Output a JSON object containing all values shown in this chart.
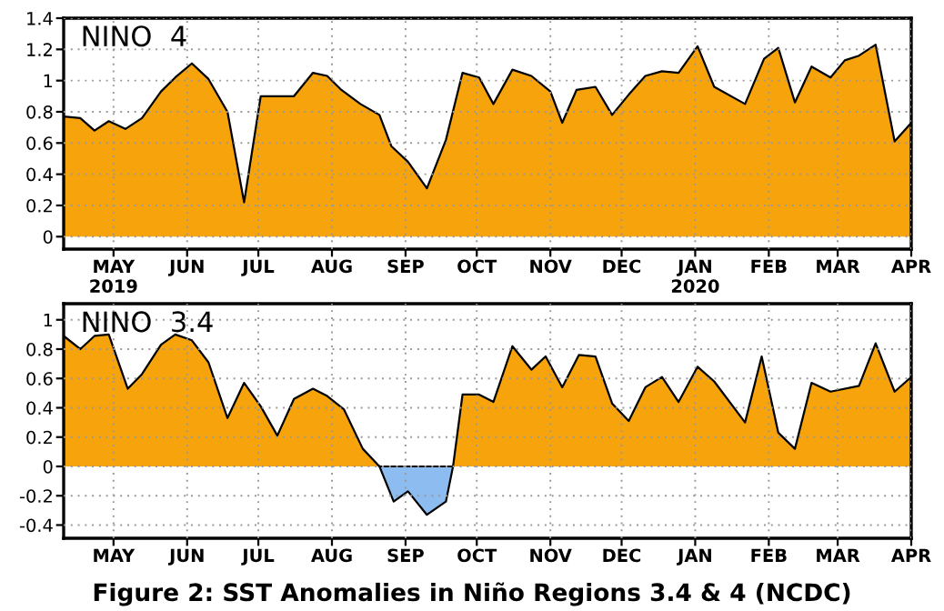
{
  "chart_data": [
    {
      "type": "area",
      "title": "NINO  4",
      "xlim": [
        "2019-04-10",
        "2020-04-01"
      ],
      "ylim": [
        -0.08,
        1.4
      ],
      "yticks": [
        0,
        0.2,
        0.4,
        0.6,
        0.8,
        1,
        1.2,
        1.4
      ],
      "xticks": [
        {
          "value": "2019-05-01",
          "label": "MAY\n2019"
        },
        {
          "value": "2019-06-01",
          "label": "JUN"
        },
        {
          "value": "2019-07-01",
          "label": "JUL"
        },
        {
          "value": "2019-08-01",
          "label": "AUG"
        },
        {
          "value": "2019-09-01",
          "label": "SEP"
        },
        {
          "value": "2019-10-01",
          "label": "OCT"
        },
        {
          "value": "2019-11-01",
          "label": "NOV"
        },
        {
          "value": "2019-12-01",
          "label": "DEC"
        },
        {
          "value": "2020-01-01",
          "label": "JAN\n2020"
        },
        {
          "value": "2020-02-01",
          "label": "FEB"
        },
        {
          "value": "2020-03-01",
          "label": "MAR"
        },
        {
          "value": "2020-04-01",
          "label": "APR"
        }
      ],
      "grid": true,
      "x": [
        "2019-04-10",
        "2019-04-17",
        "2019-04-23",
        "2019-04-29",
        "2019-05-06",
        "2019-05-13",
        "2019-05-21",
        "2019-05-27",
        "2019-06-03",
        "2019-06-10",
        "2019-06-18",
        "2019-06-25",
        "2019-07-02",
        "2019-07-16",
        "2019-07-24",
        "2019-07-30",
        "2019-08-05",
        "2019-08-13",
        "2019-08-21",
        "2019-08-26",
        "2019-09-02",
        "2019-09-10",
        "2019-09-18",
        "2019-09-25",
        "2019-10-02",
        "2019-10-08",
        "2019-10-16",
        "2019-10-24",
        "2019-11-01",
        "2019-11-06",
        "2019-11-12",
        "2019-11-20",
        "2019-11-27",
        "2019-12-04",
        "2019-12-11",
        "2019-12-18",
        "2019-12-25",
        "2020-01-02",
        "2020-01-09",
        "2020-01-22",
        "2020-01-30",
        "2020-02-05",
        "2020-02-12",
        "2020-02-19",
        "2020-02-27",
        "2020-03-04",
        "2020-03-10",
        "2020-03-17",
        "2020-03-25",
        "2020-04-01"
      ],
      "series": [
        {
          "color": "#f7a30c",
          "values": [
            0.77,
            0.76,
            0.68,
            0.74,
            0.69,
            0.76,
            0.93,
            1.02,
            1.11,
            1.01,
            0.8,
            0.22,
            0.9,
            0.9,
            1.05,
            1.03,
            0.94,
            0.85,
            0.78,
            0.58,
            0.48,
            0.31,
            0.62,
            1.05,
            1.02,
            0.85,
            1.07,
            1.03,
            0.93,
            0.73,
            0.94,
            0.96,
            0.78,
            0.91,
            1.03,
            1.06,
            1.05,
            1.22,
            0.96,
            0.85,
            1.14,
            1.21,
            0.86,
            1.09,
            1.02,
            1.13,
            1.16,
            1.23,
            0.61,
            0.73
          ]
        }
      ]
    },
    {
      "type": "area",
      "title": "NINO  3.4",
      "xlim": [
        "2019-04-10",
        "2020-04-01"
      ],
      "ylim": [
        -0.49,
        1.11
      ],
      "yticks": [
        -0.4,
        -0.2,
        0,
        0.2,
        0.4,
        0.6,
        0.8,
        1
      ],
      "xticks": [
        {
          "value": "2019-05-01",
          "label": "MAY"
        },
        {
          "value": "2019-06-01",
          "label": "JUN"
        },
        {
          "value": "2019-07-01",
          "label": "JUL"
        },
        {
          "value": "2019-08-01",
          "label": "AUG"
        },
        {
          "value": "2019-09-01",
          "label": "SEP"
        },
        {
          "value": "2019-10-01",
          "label": "OCT"
        },
        {
          "value": "2019-11-01",
          "label": "NOV"
        },
        {
          "value": "2019-12-01",
          "label": "DEC"
        },
        {
          "value": "2020-01-01",
          "label": "JAN"
        },
        {
          "value": "2020-02-01",
          "label": "FEB"
        },
        {
          "value": "2020-03-01",
          "label": "MAR"
        },
        {
          "value": "2020-04-01",
          "label": "APR"
        }
      ],
      "grid": true,
      "annotations": [
        "Figure 2: SST Anomalies in Niño Regions 3.4 & 4 (NCDC)"
      ],
      "x": [
        "2019-04-10",
        "2019-04-17",
        "2019-04-23",
        "2019-04-29",
        "2019-05-07",
        "2019-05-13",
        "2019-05-21",
        "2019-05-27",
        "2019-06-03",
        "2019-06-10",
        "2019-06-18",
        "2019-06-25",
        "2019-07-02",
        "2019-07-09",
        "2019-07-16",
        "2019-07-24",
        "2019-07-30",
        "2019-08-06",
        "2019-08-14",
        "2019-08-21",
        "2019-09-21",
        "2019-09-25",
        "2019-10-02",
        "2019-10-08",
        "2019-10-16",
        "2019-10-24",
        "2019-10-30",
        "2019-11-06",
        "2019-11-13",
        "2019-11-20",
        "2019-11-27",
        "2019-12-04",
        "2019-12-11",
        "2019-12-18",
        "2019-12-25",
        "2020-01-02",
        "2020-01-09",
        "2020-01-22",
        "2020-01-29",
        "2020-02-05",
        "2020-02-12",
        "2020-02-19",
        "2020-02-27",
        "2020-03-10",
        "2020-03-17",
        "2020-03-25",
        "2020-04-01"
      ],
      "series": [
        {
          "color": "#f7a30c",
          "values": [
            0.89,
            0.8,
            0.89,
            0.9,
            0.53,
            0.63,
            0.83,
            0.9,
            0.86,
            0.71,
            0.33,
            0.57,
            0.41,
            0.21,
            0.46,
            0.53,
            0.48,
            0.39,
            0.12,
            0.0,
            0.0,
            0.49,
            0.49,
            0.44,
            0.82,
            0.66,
            0.75,
            0.54,
            0.76,
            0.75,
            0.43,
            0.31,
            0.54,
            0.61,
            0.44,
            0.68,
            0.58,
            0.3,
            0.75,
            0.23,
            0.12,
            0.57,
            0.51,
            0.55,
            0.84,
            0.51,
            0.61
          ]
        },
        {
          "color": "#8cbcf0",
          "x": [
            "2019-08-21",
            "2019-08-27",
            "2019-09-02",
            "2019-09-10",
            "2019-09-18",
            "2019-09-21"
          ],
          "values": [
            0.0,
            -0.24,
            -0.17,
            -0.33,
            -0.24,
            0.0
          ]
        }
      ]
    }
  ]
}
